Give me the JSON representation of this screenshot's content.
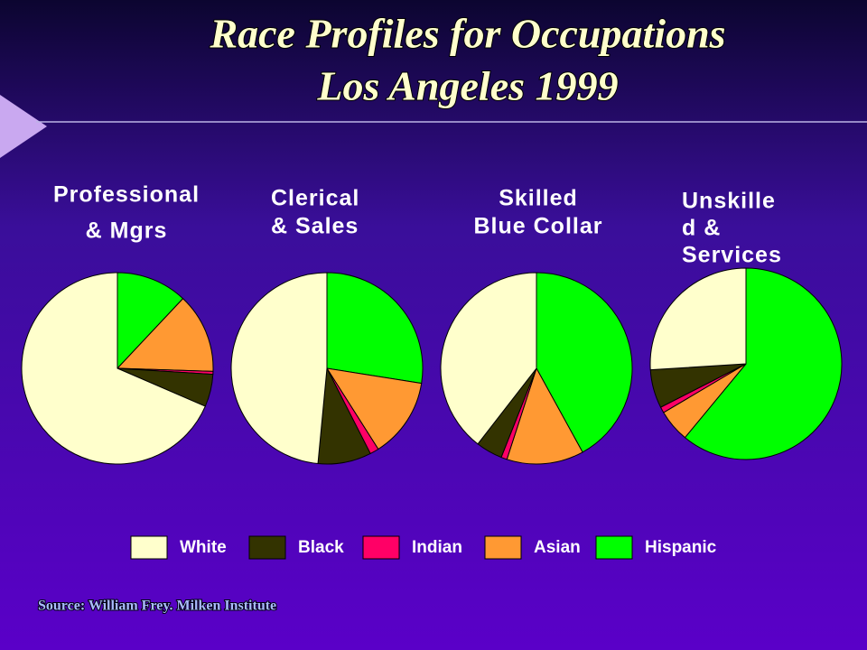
{
  "title": [
    "Race Profiles for Occupations",
    "Los Angeles 1999"
  ],
  "source": "Source: William Frey. Milken Institute",
  "legend": {
    "categories": [
      "White",
      "Black",
      "Indian",
      "Asian",
      "Hispanic"
    ],
    "colors": [
      "#ffffcc",
      "#333300",
      "#ff0066",
      "#ff9933",
      "#00ff00"
    ]
  },
  "chart_data": [
    {
      "type": "pie",
      "title": [
        "Professional",
        "& Mgrs"
      ],
      "values": [
        68.5,
        5.5,
        0.5,
        13.5,
        12
      ]
    },
    {
      "type": "pie",
      "title": [
        "Clerical",
        "& Sales"
      ],
      "values": [
        48.5,
        9,
        1.5,
        13.5,
        27.5
      ]
    },
    {
      "type": "pie",
      "title": [
        "Skilled",
        "Blue Collar"
      ],
      "values": [
        39.5,
        4.5,
        1,
        13,
        42
      ]
    },
    {
      "type": "pie",
      "title": [
        "Unskille",
        "d &",
        "Services"
      ],
      "values": [
        26,
        6.5,
        1,
        5.5,
        61
      ]
    }
  ]
}
